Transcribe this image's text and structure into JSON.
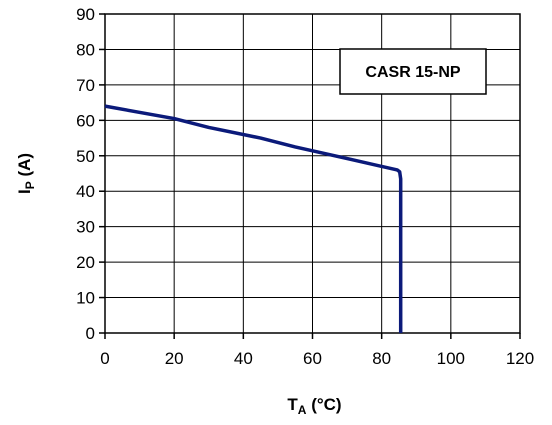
{
  "chart_data": {
    "type": "line",
    "title": "",
    "xlabel": {
      "main": "T",
      "sub": "A",
      "unit": " (°C)"
    },
    "ylabel": {
      "main": "I",
      "sub": "P",
      "unit": " (A)"
    },
    "xlim": [
      0,
      120
    ],
    "ylim": [
      0,
      90
    ],
    "x_ticks": [
      "0",
      "20",
      "40",
      "60",
      "80",
      "100",
      "120"
    ],
    "y_ticks": [
      "0",
      "10",
      "20",
      "30",
      "40",
      "50",
      "60",
      "70",
      "80",
      "90"
    ],
    "grid": true,
    "annotation": "CASR 15-NP",
    "series": [
      {
        "color": "#0b1a7a",
        "x": [
          0,
          20,
          30,
          45,
          55,
          71,
          84.5,
          85.2,
          85.5,
          85.5
        ],
        "y": [
          64,
          60.5,
          58,
          55,
          52.5,
          49,
          46,
          45.5,
          43.5,
          0
        ]
      }
    ]
  }
}
